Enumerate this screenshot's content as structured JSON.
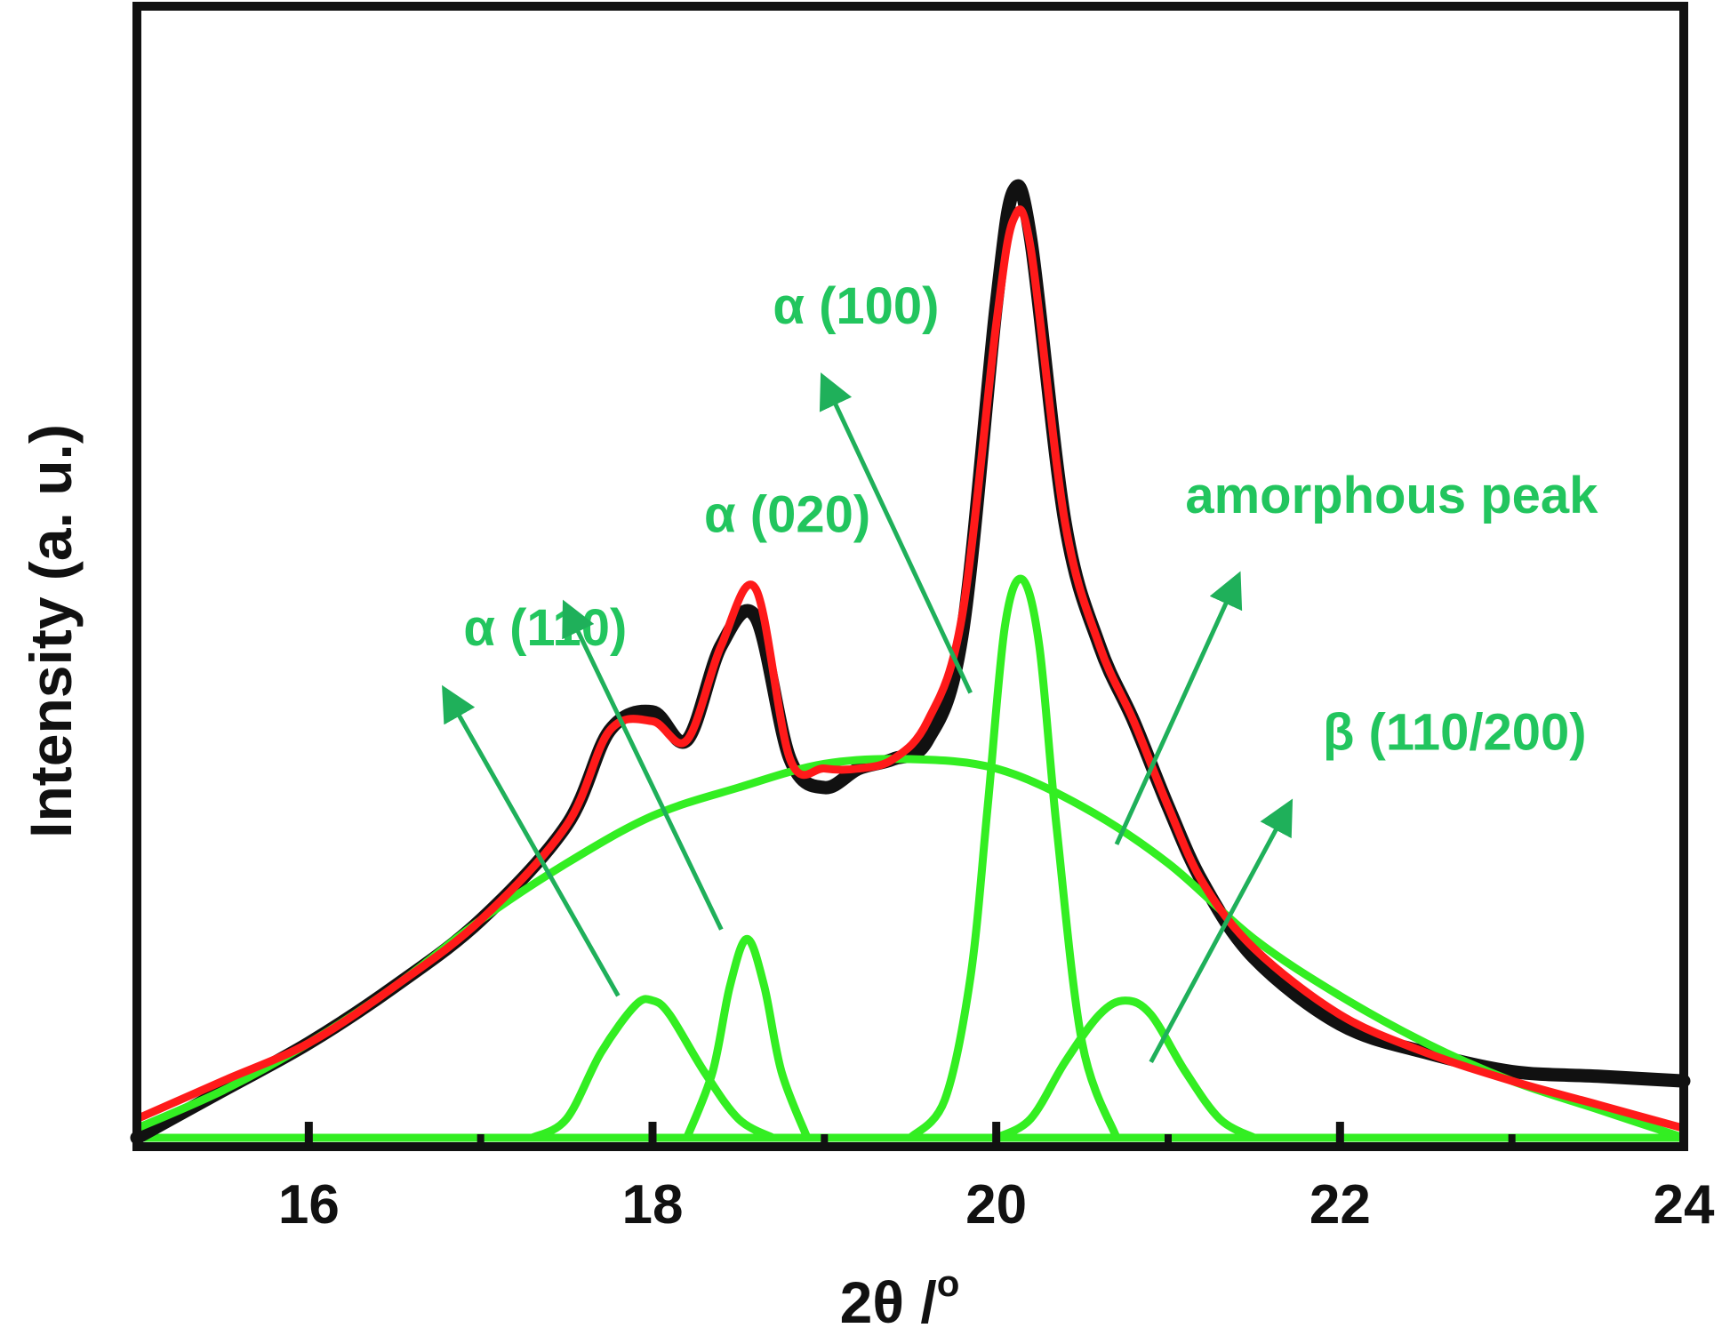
{
  "chart_data": {
    "type": "line",
    "title": "",
    "xlabel": "2θ /",
    "xlabel_superscript": "o",
    "ylabel": "Intensity (a. u.)",
    "xlim": [
      15,
      24
    ],
    "ylim": [
      0,
      1.0
    ],
    "x_ticks": [
      16,
      18,
      20,
      22,
      24
    ],
    "x_minor_ticks": [
      17,
      19,
      21,
      23
    ],
    "grid": false,
    "legend": "none",
    "colors": {
      "observed": "#111111",
      "fit": "#ff1a1a",
      "components": "#33ee22",
      "annotations": "#22c55e"
    },
    "series": [
      {
        "role": "observed",
        "x": [
          15.0,
          15.5,
          16.0,
          16.5,
          17.0,
          17.5,
          17.75,
          18.0,
          18.2,
          18.4,
          18.6,
          18.8,
          19.0,
          19.2,
          19.4,
          19.6,
          19.8,
          20.0,
          20.1,
          20.2,
          20.4,
          20.6,
          20.8,
          21.0,
          21.2,
          21.5,
          22.0,
          22.5,
          23.0,
          23.5,
          24.0
        ],
        "y": [
          0.0,
          0.05,
          0.1,
          0.16,
          0.23,
          0.33,
          0.43,
          0.45,
          0.42,
          0.52,
          0.55,
          0.4,
          0.37,
          0.39,
          0.4,
          0.42,
          0.53,
          0.88,
          1.0,
          0.95,
          0.65,
          0.52,
          0.44,
          0.35,
          0.27,
          0.19,
          0.12,
          0.09,
          0.07,
          0.065,
          0.06
        ]
      },
      {
        "role": "fit",
        "x": [
          15.0,
          15.5,
          16.0,
          16.5,
          17.0,
          17.5,
          17.75,
          18.0,
          18.2,
          18.4,
          18.6,
          18.8,
          19.0,
          19.2,
          19.4,
          19.6,
          19.8,
          20.0,
          20.1,
          20.2,
          20.4,
          20.6,
          20.8,
          21.0,
          21.2,
          21.5,
          22.0,
          22.5,
          23.0,
          23.5,
          24.0
        ],
        "y": [
          0.02,
          0.06,
          0.1,
          0.16,
          0.23,
          0.33,
          0.43,
          0.44,
          0.42,
          0.52,
          0.58,
          0.4,
          0.39,
          0.39,
          0.4,
          0.44,
          0.55,
          0.86,
          0.97,
          0.94,
          0.65,
          0.52,
          0.44,
          0.35,
          0.27,
          0.2,
          0.13,
          0.09,
          0.06,
          0.035,
          0.01
        ]
      },
      {
        "role": "component",
        "label": "amorphous peak",
        "x": [
          15.0,
          15.5,
          16.0,
          16.5,
          17.0,
          17.5,
          18.0,
          18.5,
          19.0,
          19.5,
          20.0,
          20.5,
          21.0,
          21.5,
          22.0,
          22.5,
          23.0,
          23.5,
          24.0
        ],
        "y": [
          0.01,
          0.05,
          0.1,
          0.16,
          0.23,
          0.29,
          0.34,
          0.37,
          0.395,
          0.4,
          0.39,
          0.35,
          0.29,
          0.21,
          0.15,
          0.1,
          0.06,
          0.03,
          0.0
        ]
      },
      {
        "role": "component",
        "label": "α (110)",
        "x": [
          17.3,
          17.5,
          17.7,
          17.9,
          18.0,
          18.1,
          18.3,
          18.5,
          18.7
        ],
        "y": [
          0.0,
          0.02,
          0.09,
          0.14,
          0.145,
          0.13,
          0.07,
          0.02,
          0.0
        ]
      },
      {
        "role": "component",
        "label": "α (020)",
        "x": [
          18.2,
          18.35,
          18.45,
          18.55,
          18.65,
          18.75,
          18.9
        ],
        "y": [
          0.0,
          0.07,
          0.16,
          0.21,
          0.16,
          0.07,
          0.0
        ]
      },
      {
        "role": "component",
        "label": "α (100)",
        "x": [
          19.5,
          19.7,
          19.85,
          19.95,
          20.05,
          20.15,
          20.25,
          20.35,
          20.5,
          20.7
        ],
        "y": [
          0.0,
          0.04,
          0.17,
          0.35,
          0.54,
          0.59,
          0.52,
          0.33,
          0.1,
          0.0
        ]
      },
      {
        "role": "component",
        "label": "β (110/200)",
        "x": [
          20.0,
          20.2,
          20.4,
          20.6,
          20.75,
          20.9,
          21.1,
          21.3,
          21.5
        ],
        "y": [
          0.0,
          0.02,
          0.08,
          0.13,
          0.145,
          0.13,
          0.07,
          0.02,
          0.0
        ]
      }
    ],
    "annotations": [
      {
        "text": "α (110)",
        "label_at": [
          16.9,
          0.52
        ],
        "arrow_from": [
          17.8,
          0.15
        ],
        "arrow_to": [
          16.8,
          0.47
        ]
      },
      {
        "text": "α (020)",
        "label_at": [
          18.3,
          0.64
        ],
        "arrow_from": [
          18.4,
          0.22
        ],
        "arrow_to": [
          17.5,
          0.56
        ]
      },
      {
        "text": "α (100)",
        "label_at": [
          18.7,
          0.86
        ],
        "arrow_from": [
          19.85,
          0.47
        ],
        "arrow_to": [
          19.0,
          0.8
        ]
      },
      {
        "text": "amorphous peak",
        "label_at": [
          21.1,
          0.66
        ],
        "arrow_from": [
          20.7,
          0.31
        ],
        "arrow_to": [
          21.4,
          0.59
        ]
      },
      {
        "text": "β (110/200)",
        "label_at": [
          21.9,
          0.41
        ],
        "arrow_from": [
          20.9,
          0.08
        ],
        "arrow_to": [
          21.7,
          0.35
        ]
      }
    ]
  }
}
